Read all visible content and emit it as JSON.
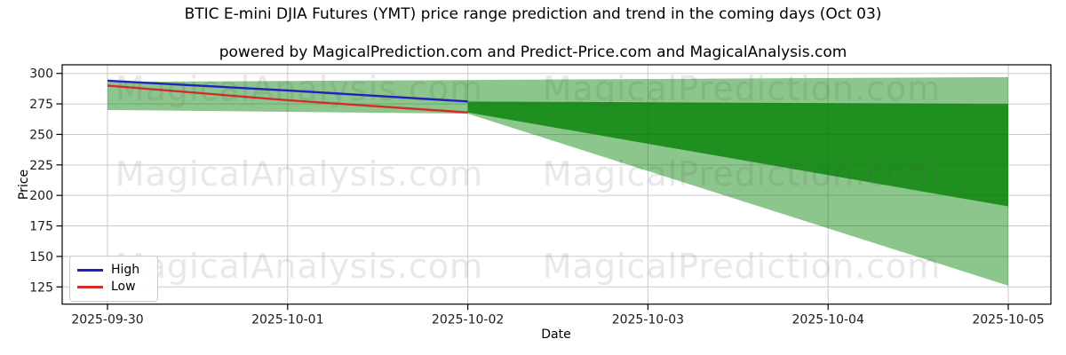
{
  "watermarks": {
    "left_text": "MagicalAnalysis.com",
    "right_text": "MagicalPrediction.com"
  },
  "chart_data": {
    "type": "line",
    "title": "BTIC E-mini DJIA Futures (YMT) price range prediction and trend in the coming days (Oct 03)",
    "subtitle": "powered by MagicalPrediction.com and Predict-Price.com and MagicalAnalysis.com",
    "xlabel": "Date",
    "ylabel": "Price",
    "x_categories": [
      "2025-09-30",
      "2025-10-01",
      "2025-10-02",
      "2025-10-03",
      "2025-10-04",
      "2025-10-05"
    ],
    "yticks": [
      125,
      150,
      175,
      200,
      225,
      250,
      275,
      300
    ],
    "ylim": [
      111,
      307
    ],
    "grid": true,
    "legend_position": "lower left",
    "series": [
      {
        "name": "High",
        "color": "#2020c0",
        "x": [
          "2025-09-30",
          "2025-10-01",
          "2025-10-02"
        ],
        "values": [
          294,
          286,
          277
        ]
      },
      {
        "name": "Low",
        "color": "#d62b2b",
        "x": [
          "2025-09-30",
          "2025-10-01",
          "2025-10-02"
        ],
        "values": [
          290,
          278,
          268
        ]
      }
    ],
    "bands": [
      {
        "name": "outer-range-band",
        "color": "rgba(0,128,0,0.45)",
        "top": {
          "x": [
            "2025-09-30",
            "2025-10-05"
          ],
          "values": [
            293,
            297
          ]
        },
        "bottom": {
          "x": [
            "2025-09-30",
            "2025-10-02",
            "2025-10-05"
          ],
          "values": [
            270,
            267,
            126
          ]
        }
      },
      {
        "name": "inner-range-band",
        "color": "rgba(0,128,0,0.78)",
        "top": {
          "x": [
            "2025-10-02",
            "2025-10-05"
          ],
          "values": [
            277,
            275
          ]
        },
        "bottom": {
          "x": [
            "2025-10-02",
            "2025-10-05"
          ],
          "values": [
            268,
            191
          ]
        }
      }
    ],
    "colors": {
      "grid": "#c9c9c9",
      "spine": "#000000",
      "background": "#ffffff"
    }
  }
}
